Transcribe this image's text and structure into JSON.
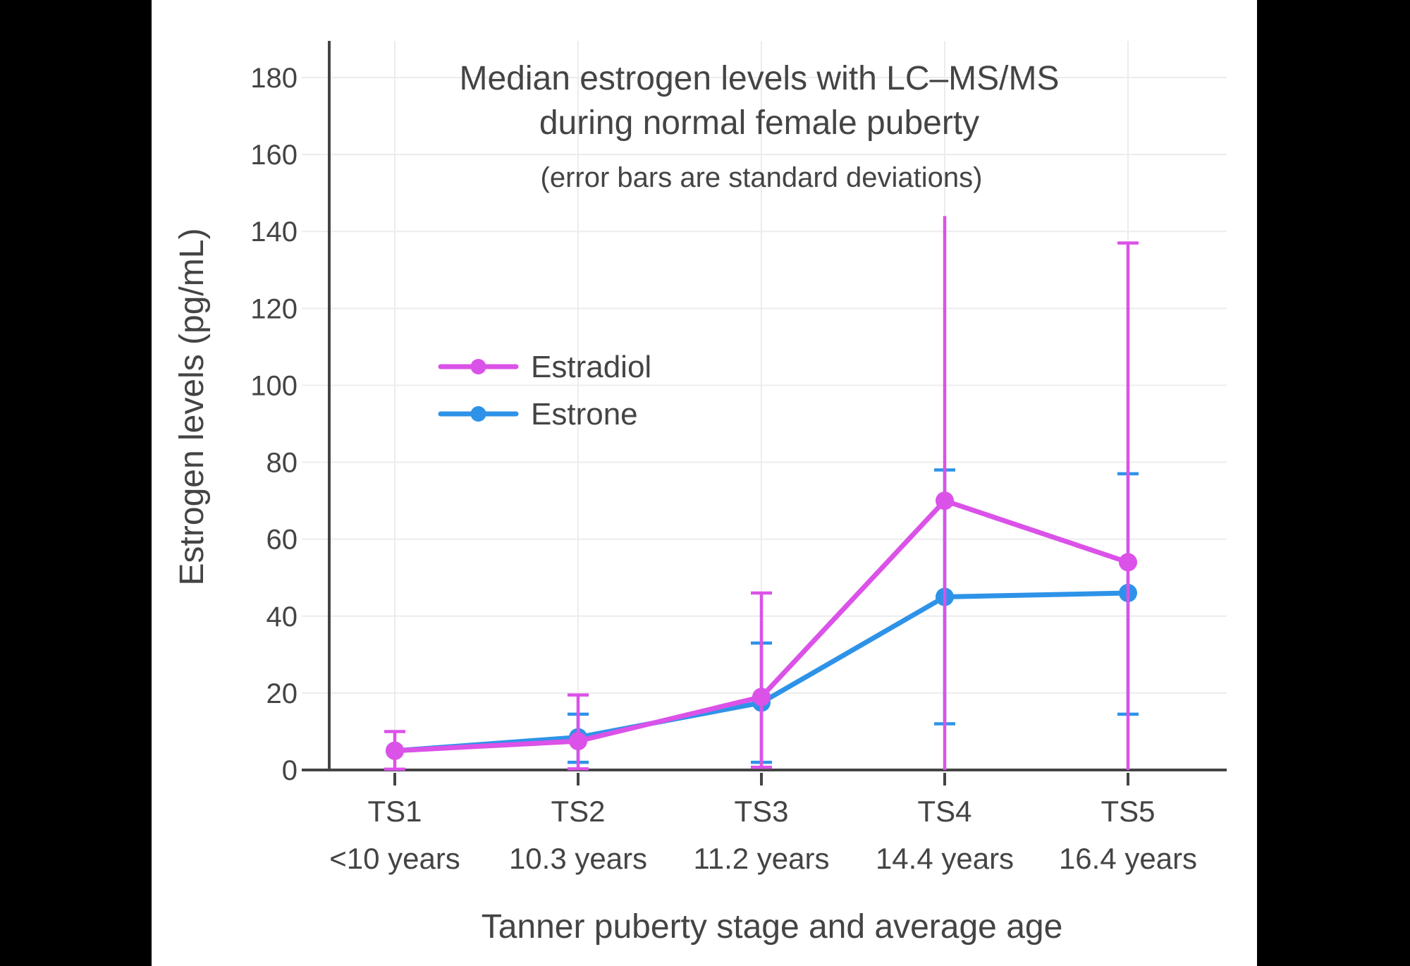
{
  "frame": {
    "background": "#000000",
    "content_background": "#FFFFFF"
  },
  "chart_data": {
    "type": "line",
    "title_lines": [
      "Median estrogen levels with LC–MS/MS",
      "during normal female puberty"
    ],
    "subtitle": "(error bars are standard deviations)",
    "xlabel": "Tanner puberty stage and average age",
    "ylabel": "Estrogen levels (pg/mL)",
    "categories": [
      "TS1",
      "TS2",
      "TS3",
      "TS4",
      "TS5"
    ],
    "category_ages": [
      "<10 years",
      "10.3 years",
      "11.2 years",
      "14.4 years",
      "16.4 years"
    ],
    "y_ticks": [
      0,
      20,
      40,
      60,
      80,
      100,
      120,
      140,
      160,
      180
    ],
    "ylim": [
      0,
      190
    ],
    "grid": true,
    "legend_position": "inside-upper-left",
    "series": [
      {
        "name": "Estradiol",
        "color": "#DB52E8",
        "values": [
          5,
          7.5,
          19,
          70,
          54
        ],
        "err_high": [
          10,
          19.5,
          46,
          144,
          137
        ],
        "err_low": [
          0.2,
          0.3,
          0.7,
          null,
          null
        ],
        "err_high_cap": [
          true,
          true,
          true,
          false,
          true
        ]
      },
      {
        "name": "Estrone",
        "color": "#2E93E8",
        "values": [
          5,
          8.5,
          17.5,
          45,
          46
        ],
        "err_high": [
          null,
          14.5,
          33,
          78,
          77
        ],
        "err_low": [
          null,
          2,
          2,
          12,
          14.5
        ],
        "err_high_cap": [
          true,
          true,
          true,
          true,
          true
        ]
      }
    ],
    "colors": {
      "axis": "#444444",
      "grid": "#ECECEC",
      "text": "#444444"
    }
  }
}
